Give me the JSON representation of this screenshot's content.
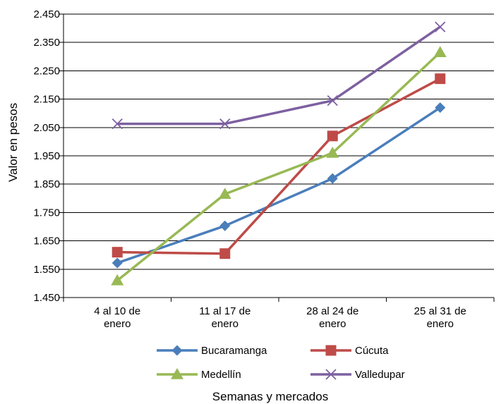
{
  "chart_data": {
    "type": "line",
    "title": "",
    "xlabel": "Semanas y mercados",
    "ylabel": "Valor en pesos",
    "categories": [
      [
        "4 al 10 de",
        "enero"
      ],
      [
        "11 al 17 de",
        "enero"
      ],
      [
        "28 al 24 de",
        "enero"
      ],
      [
        "25 al 31 de",
        "enero"
      ]
    ],
    "ylim": [
      1450,
      2450
    ],
    "yticks": [
      1450,
      1550,
      1650,
      1750,
      1850,
      1950,
      2050,
      2150,
      2250,
      2350,
      2450
    ],
    "ytick_labels": [
      "1.450",
      "1.550",
      "1.650",
      "1.750",
      "1.850",
      "1.950",
      "2.050",
      "2.150",
      "2.250",
      "2.350",
      "2.450"
    ],
    "grid": "horizontal",
    "legend_position": "bottom",
    "series": [
      {
        "name": "Bucaramanga",
        "color": "#4a7ebb",
        "marker": "diamond",
        "values": [
          1572,
          1703,
          1870,
          2120
        ]
      },
      {
        "name": "Cúcuta",
        "color": "#be4b48",
        "marker": "square",
        "values": [
          1610,
          1605,
          2020,
          2222
        ]
      },
      {
        "name": "Medellín",
        "color": "#98b954",
        "marker": "triangle",
        "values": [
          1510,
          1815,
          1960,
          2315
        ]
      },
      {
        "name": "Valledupar",
        "color": "#7d60a0",
        "marker": "x",
        "values": [
          2063,
          2063,
          2145,
          2405
        ]
      }
    ]
  }
}
